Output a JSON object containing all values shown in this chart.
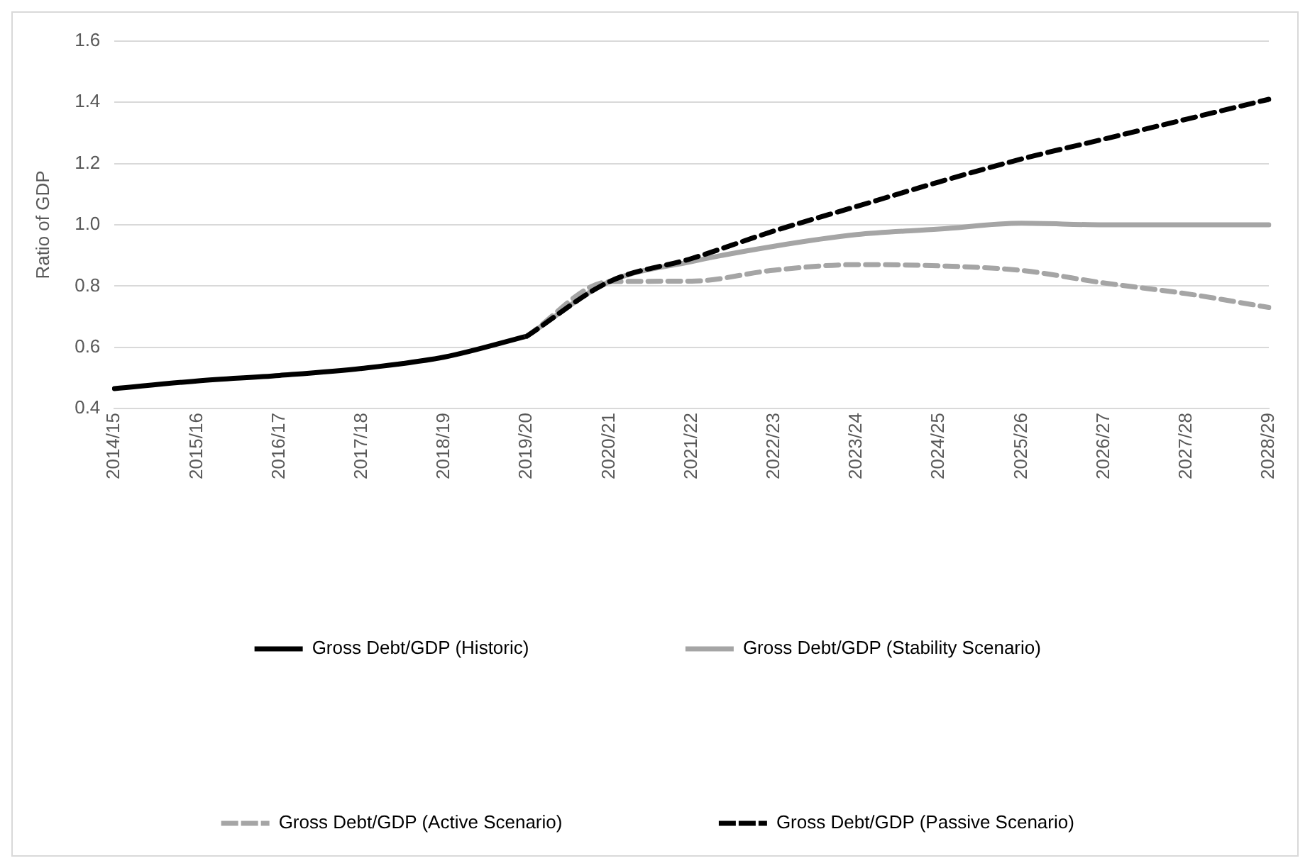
{
  "chart_data": {
    "type": "line",
    "ylabel": "Ratio of GDP",
    "categories": [
      "2014/15",
      "2015/16",
      "2016/17",
      "2017/18",
      "2018/19",
      "2019/20",
      "2020/21",
      "2021/22",
      "2022/23",
      "2023/24",
      "2024/25",
      "2025/26",
      "2026/27",
      "2027/28",
      "2028/29"
    ],
    "series": [
      {
        "name": "Gross Debt/GDP (Historic)",
        "color": "#000000",
        "line_style": "solid",
        "values": [
          0.465,
          0.49,
          0.508,
          0.531,
          0.568,
          0.636,
          null,
          null,
          null,
          null,
          null,
          null,
          null,
          null,
          null
        ]
      },
      {
        "name": "Gross Debt/GDP (Stability Scenario)",
        "color": "#a5a5a5",
        "line_style": "solid",
        "values": [
          null,
          null,
          null,
          null,
          null,
          0.636,
          0.814,
          0.88,
          0.93,
          0.968,
          0.986,
          1.005,
          1.0,
          1.0,
          1.0
        ]
      },
      {
        "name": "Gross Debt/GDP (Active Scenario)",
        "color": "#a5a5a5",
        "line_style": "dashed",
        "values": [
          null,
          null,
          null,
          null,
          null,
          0.636,
          0.814,
          0.816,
          0.852,
          0.87,
          0.866,
          0.851,
          0.81,
          0.775,
          0.73
        ]
      },
      {
        "name": "Gross Debt/GDP (Passive Scenario)",
        "color": "#000000",
        "line_style": "dashed",
        "values": [
          null,
          null,
          null,
          null,
          null,
          0.636,
          0.814,
          0.89,
          0.98,
          1.06,
          1.14,
          1.215,
          1.28,
          1.345,
          1.41
        ]
      }
    ],
    "ylim": [
      0.4,
      1.6
    ],
    "yticks": [
      {
        "value": 0.4,
        "label": "0.4"
      },
      {
        "value": 0.6,
        "label": "0.6"
      },
      {
        "value": 0.8,
        "label": "0.8"
      },
      {
        "value": 1.0,
        "label": "1.0"
      },
      {
        "value": 1.2,
        "label": "1.2"
      },
      {
        "value": 1.4,
        "label": "1.4"
      },
      {
        "value": 1.6,
        "label": "1.6"
      }
    ],
    "grid": "y",
    "legend": "bottom",
    "marker": "none"
  }
}
